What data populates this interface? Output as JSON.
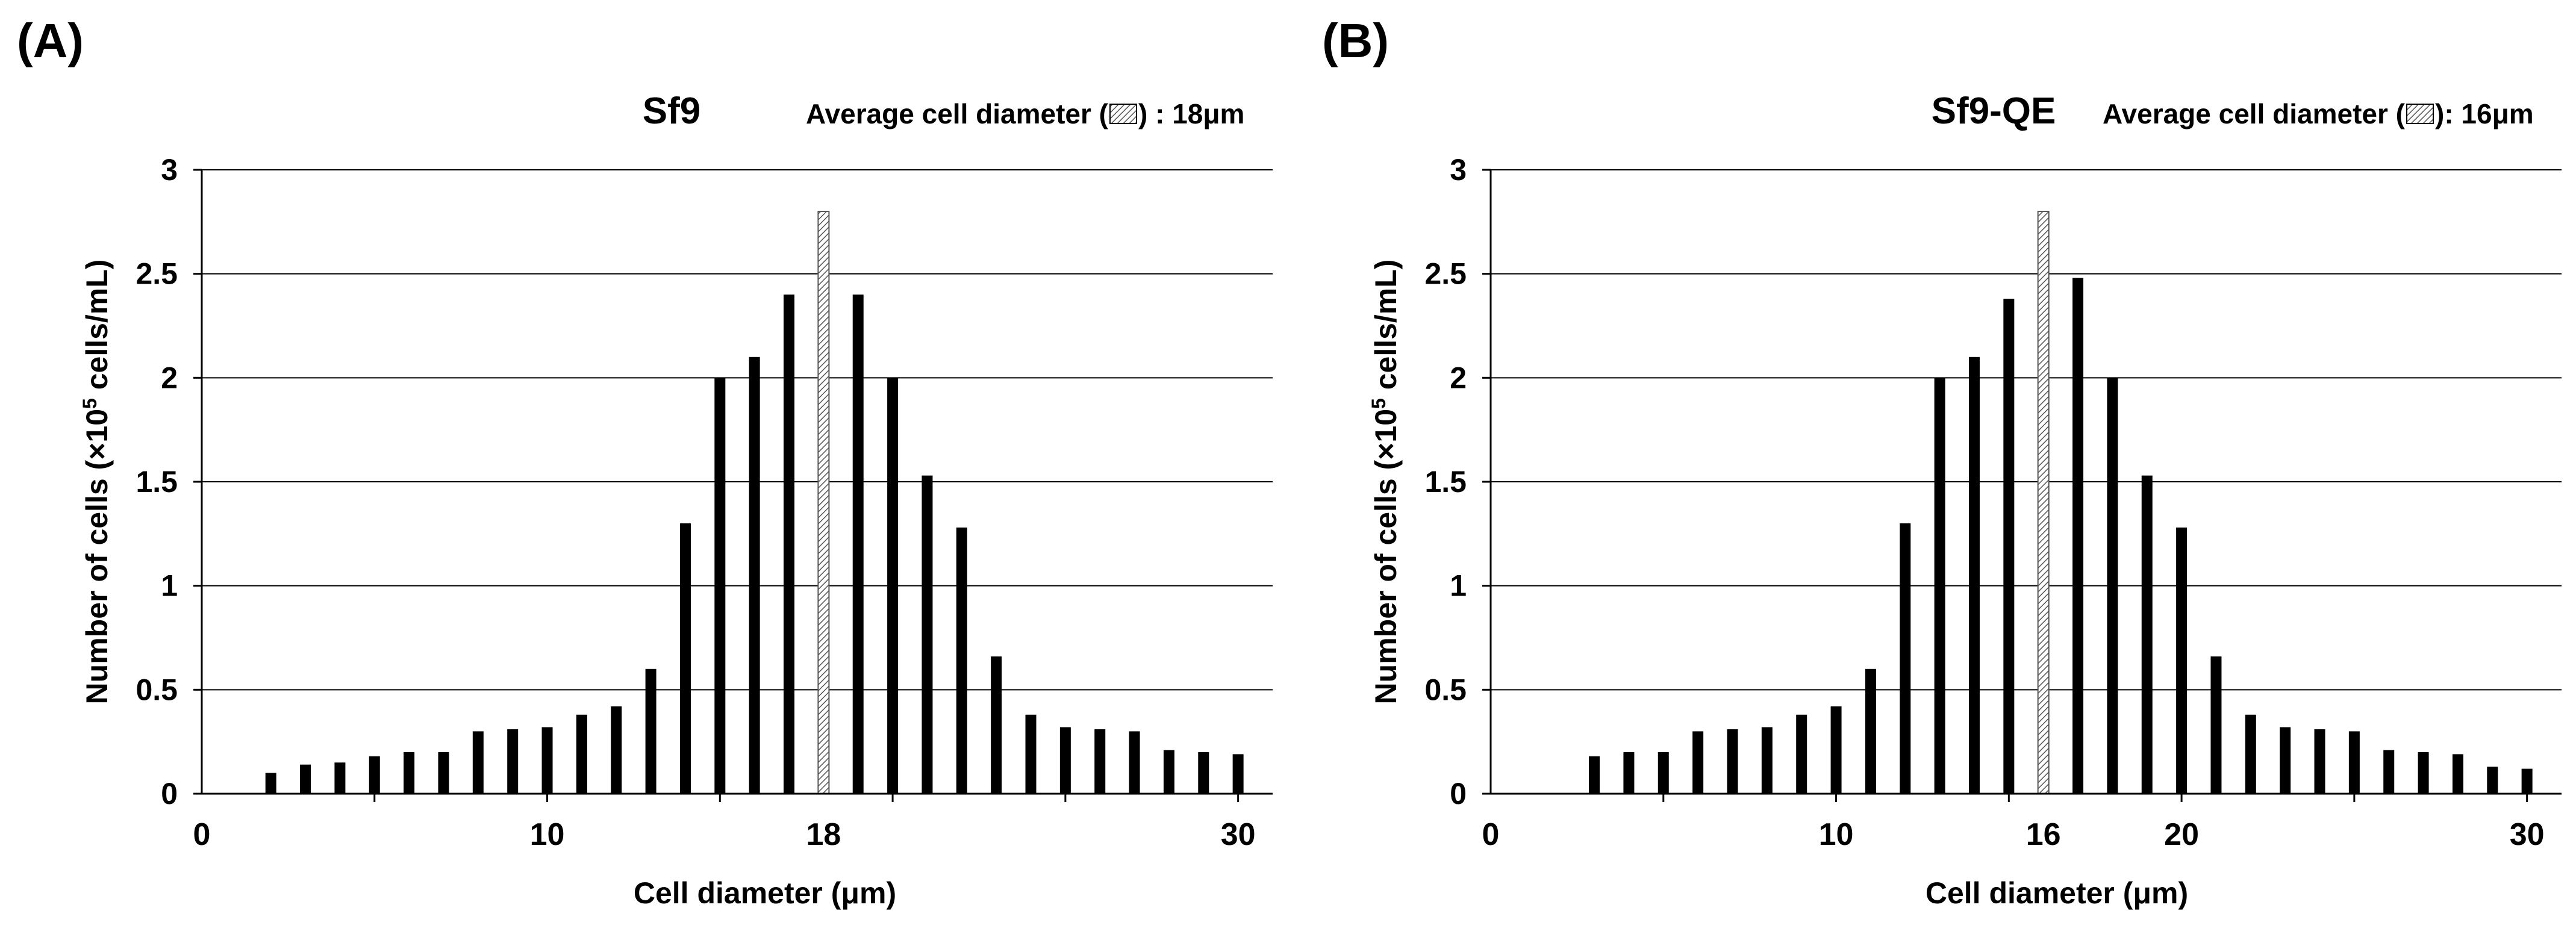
{
  "colors": {
    "bar": "#000000",
    "mean_bar_fill": "#ffffff",
    "mean_bar_stroke": "#555555",
    "grid": "#000000",
    "axis": "#000000",
    "text": "#000000"
  },
  "chart_data": [
    {
      "type": "bar",
      "panel_label": "(A)",
      "title": "Sf9",
      "subtitle_prefix": "Average cell diameter (",
      "subtitle_suffix": ") : 18μm",
      "xlabel": "Cell diameter (μm)",
      "ylabel_main": "Number of cells (×10",
      "ylabel_sup": "5",
      "ylabel_end": " cells/mL)",
      "xlim": [
        0,
        31
      ],
      "ylim": [
        0,
        3
      ],
      "yticks": [
        {
          "v": 0,
          "label": "0"
        },
        {
          "v": 0.5,
          "label": "0.5"
        },
        {
          "v": 1,
          "label": "1"
        },
        {
          "v": 1.5,
          "label": "1.5"
        },
        {
          "v": 2,
          "label": "2"
        },
        {
          "v": 2.5,
          "label": "2.5"
        },
        {
          "v": 3,
          "label": "3"
        }
      ],
      "xminor": [
        5,
        10,
        15,
        20,
        25,
        30
      ],
      "xticklabels": [
        {
          "v": 0,
          "label": "0"
        },
        {
          "v": 10,
          "label": "10"
        },
        {
          "v": 18,
          "label": "18"
        },
        {
          "v": 30,
          "label": "30"
        }
      ],
      "grid": true,
      "series": [
        {
          "name": "cells",
          "x": [
            2,
            3,
            4,
            5,
            6,
            7,
            8,
            9,
            10,
            11,
            12,
            13,
            14,
            15,
            16,
            17,
            19,
            20,
            21,
            22,
            23,
            24,
            25,
            26,
            27,
            28,
            29,
            30
          ],
          "values": [
            0.1,
            0.14,
            0.15,
            0.18,
            0.2,
            0.2,
            0.3,
            0.31,
            0.32,
            0.38,
            0.42,
            0.6,
            1.3,
            2.0,
            2.1,
            2.4,
            2.4,
            2.0,
            1.53,
            1.28,
            0.66,
            0.38,
            0.32,
            0.31,
            0.3,
            0.21,
            0.2,
            0.19
          ]
        },
        {
          "name": "average",
          "x": [
            18
          ],
          "values": [
            2.8
          ]
        }
      ]
    },
    {
      "type": "bar",
      "panel_label": "(B)",
      "title": "Sf9-QE",
      "subtitle_prefix": "Average cell diameter (",
      "subtitle_suffix": "): 16μm",
      "xlabel": "Cell diameter (μm)",
      "ylabel_main": "Number of cells (×10",
      "ylabel_sup": "5",
      "ylabel_end": " cells/mL)",
      "xlim": [
        0,
        31
      ],
      "ylim": [
        0,
        3
      ],
      "yticks": [
        {
          "v": 0,
          "label": "0"
        },
        {
          "v": 0.5,
          "label": "0.5"
        },
        {
          "v": 1,
          "label": "1"
        },
        {
          "v": 1.5,
          "label": "1.5"
        },
        {
          "v": 2,
          "label": "2"
        },
        {
          "v": 2.5,
          "label": "2.5"
        },
        {
          "v": 3,
          "label": "3"
        }
      ],
      "xminor": [
        5,
        10,
        15,
        20,
        25,
        30
      ],
      "xticklabels": [
        {
          "v": 0,
          "label": "0"
        },
        {
          "v": 10,
          "label": "10"
        },
        {
          "v": 16,
          "label": "16"
        },
        {
          "v": 20,
          "label": "20"
        },
        {
          "v": 30,
          "label": "30"
        }
      ],
      "grid": true,
      "series": [
        {
          "name": "cells",
          "x": [
            3,
            4,
            5,
            6,
            7,
            8,
            9,
            10,
            11,
            12,
            13,
            14,
            15,
            17,
            18,
            19,
            20,
            21,
            22,
            23,
            24,
            25,
            26,
            27,
            28,
            29,
            30
          ],
          "values": [
            0.18,
            0.2,
            0.2,
            0.3,
            0.31,
            0.32,
            0.38,
            0.42,
            0.6,
            1.3,
            2.0,
            2.1,
            2.38,
            2.48,
            2.0,
            1.53,
            1.28,
            0.66,
            0.38,
            0.32,
            0.31,
            0.3,
            0.21,
            0.2,
            0.19,
            0.13,
            0.12
          ]
        },
        {
          "name": "average",
          "x": [
            16
          ],
          "values": [
            2.8
          ]
        }
      ]
    }
  ]
}
